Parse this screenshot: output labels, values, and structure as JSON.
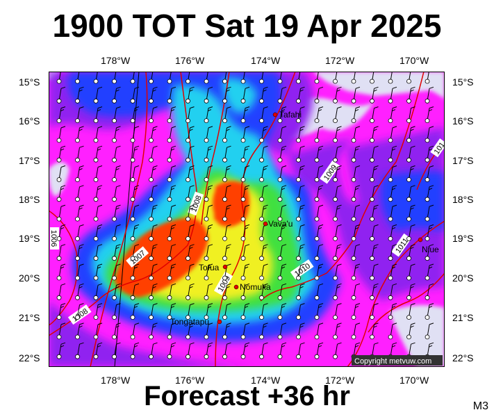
{
  "title": "1900 TOT Sat 19 Apr 2025",
  "subtitle": "Forecast +36 hr",
  "model_code": "M3",
  "copyright": "Copyright metvuw.com",
  "longitude_labels": [
    "178°W",
    "176°W",
    "174°W",
    "172°W",
    "170°W"
  ],
  "latitude_labels": [
    "15°S",
    "16°S",
    "17°S",
    "18°S",
    "19°S",
    "20°S",
    "21°S",
    "22°S"
  ],
  "places": [
    "Tafahi",
    "Vava'u",
    "Niue",
    "Tofua",
    "Nomuka",
    "Tongatapu"
  ],
  "isobar_labels": [
    "1006",
    "1007",
    "1008",
    "1008",
    "1009",
    "1009",
    "1010",
    "1011",
    "101"
  ],
  "colors": {
    "background_light": "#e0e0f4",
    "magenta": "#ff20ff",
    "violet": "#9020f0",
    "blue": "#2040ff",
    "cyan": "#20d0f0",
    "green": "#40e040",
    "yellow": "#f0f020",
    "red": "#ff4000",
    "isobar": "#e00000",
    "place_dot": "#e00000"
  }
}
